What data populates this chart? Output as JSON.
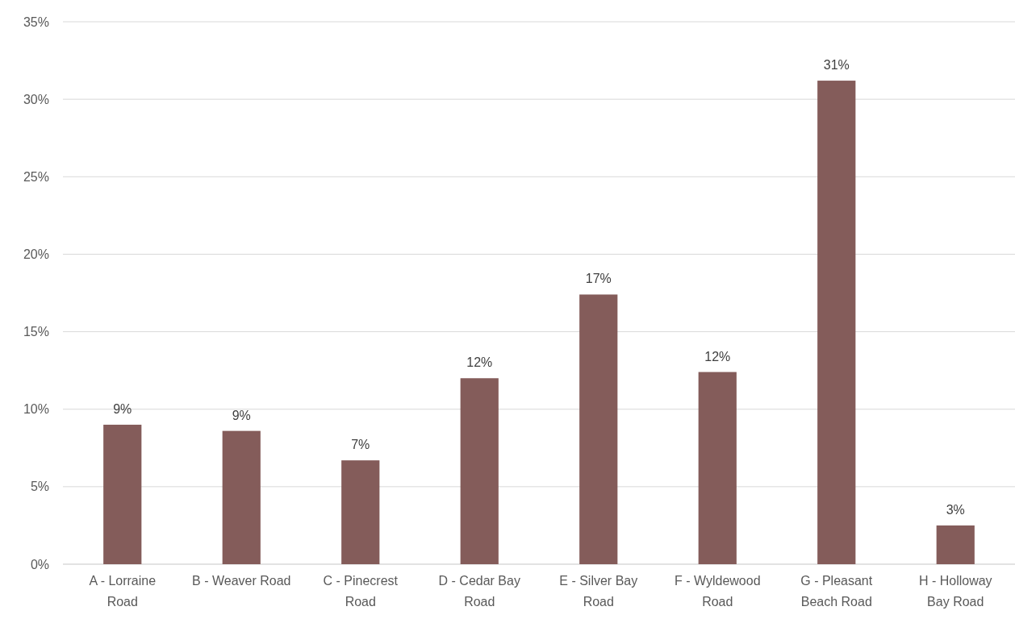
{
  "chart_data": {
    "type": "bar",
    "categories": [
      "A - Lorraine Road",
      "B - Weaver Road",
      "C - Pinecrest Road",
      "D - Cedar Bay Road",
      "E - Silver Bay Road",
      "F - Wyldewood Road",
      "G - Pleasant Beach Road",
      "H - Holloway Bay Road"
    ],
    "values": [
      9.0,
      8.6,
      6.7,
      12.0,
      17.4,
      12.4,
      31.2,
      2.5
    ],
    "value_labels": [
      "9%",
      "9%",
      "7%",
      "12%",
      "17%",
      "12%",
      "31%",
      "3%"
    ],
    "color": "#845c5a",
    "ylim": [
      0,
      35
    ],
    "yticks": [
      {
        "value": 0,
        "label": "0%"
      },
      {
        "value": 5,
        "label": "5%"
      },
      {
        "value": 10,
        "label": "10%"
      },
      {
        "value": 15,
        "label": "15%"
      },
      {
        "value": 20,
        "label": "20%"
      },
      {
        "value": 25,
        "label": "25%"
      },
      {
        "value": 30,
        "label": "30%"
      },
      {
        "value": 35,
        "label": "35%"
      }
    ],
    "grid": "y"
  }
}
